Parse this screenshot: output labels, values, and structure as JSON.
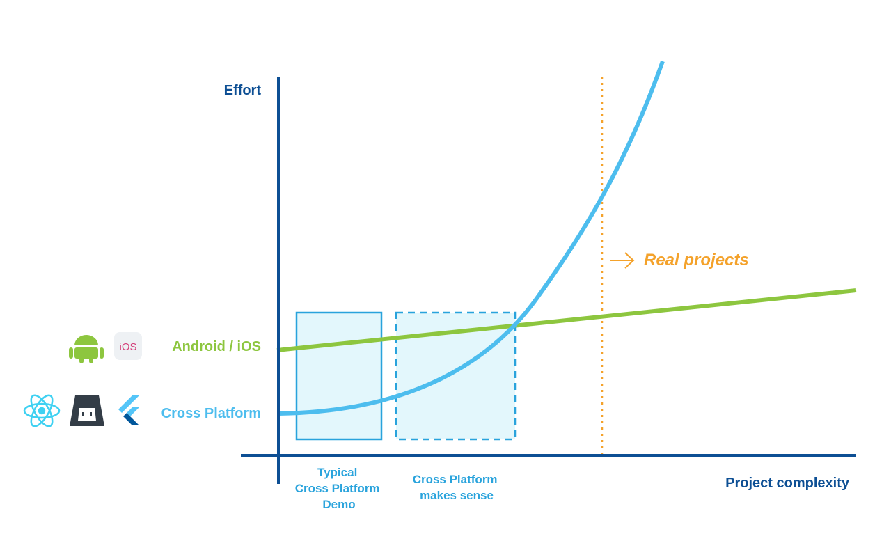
{
  "axes": {
    "y_label": "Effort",
    "x_label": "Project complexity"
  },
  "lines": [
    {
      "label": "Android / iOS"
    },
    {
      "label": "Cross Platform"
    }
  ],
  "regions": [
    {
      "label": [
        "Typical",
        "Cross Platform",
        "Demo"
      ]
    },
    {
      "label": [
        "Cross Platform",
        "makes sense"
      ]
    }
  ],
  "marker": {
    "label": "Real projects"
  },
  "icons": {
    "ios": "iOS"
  }
}
